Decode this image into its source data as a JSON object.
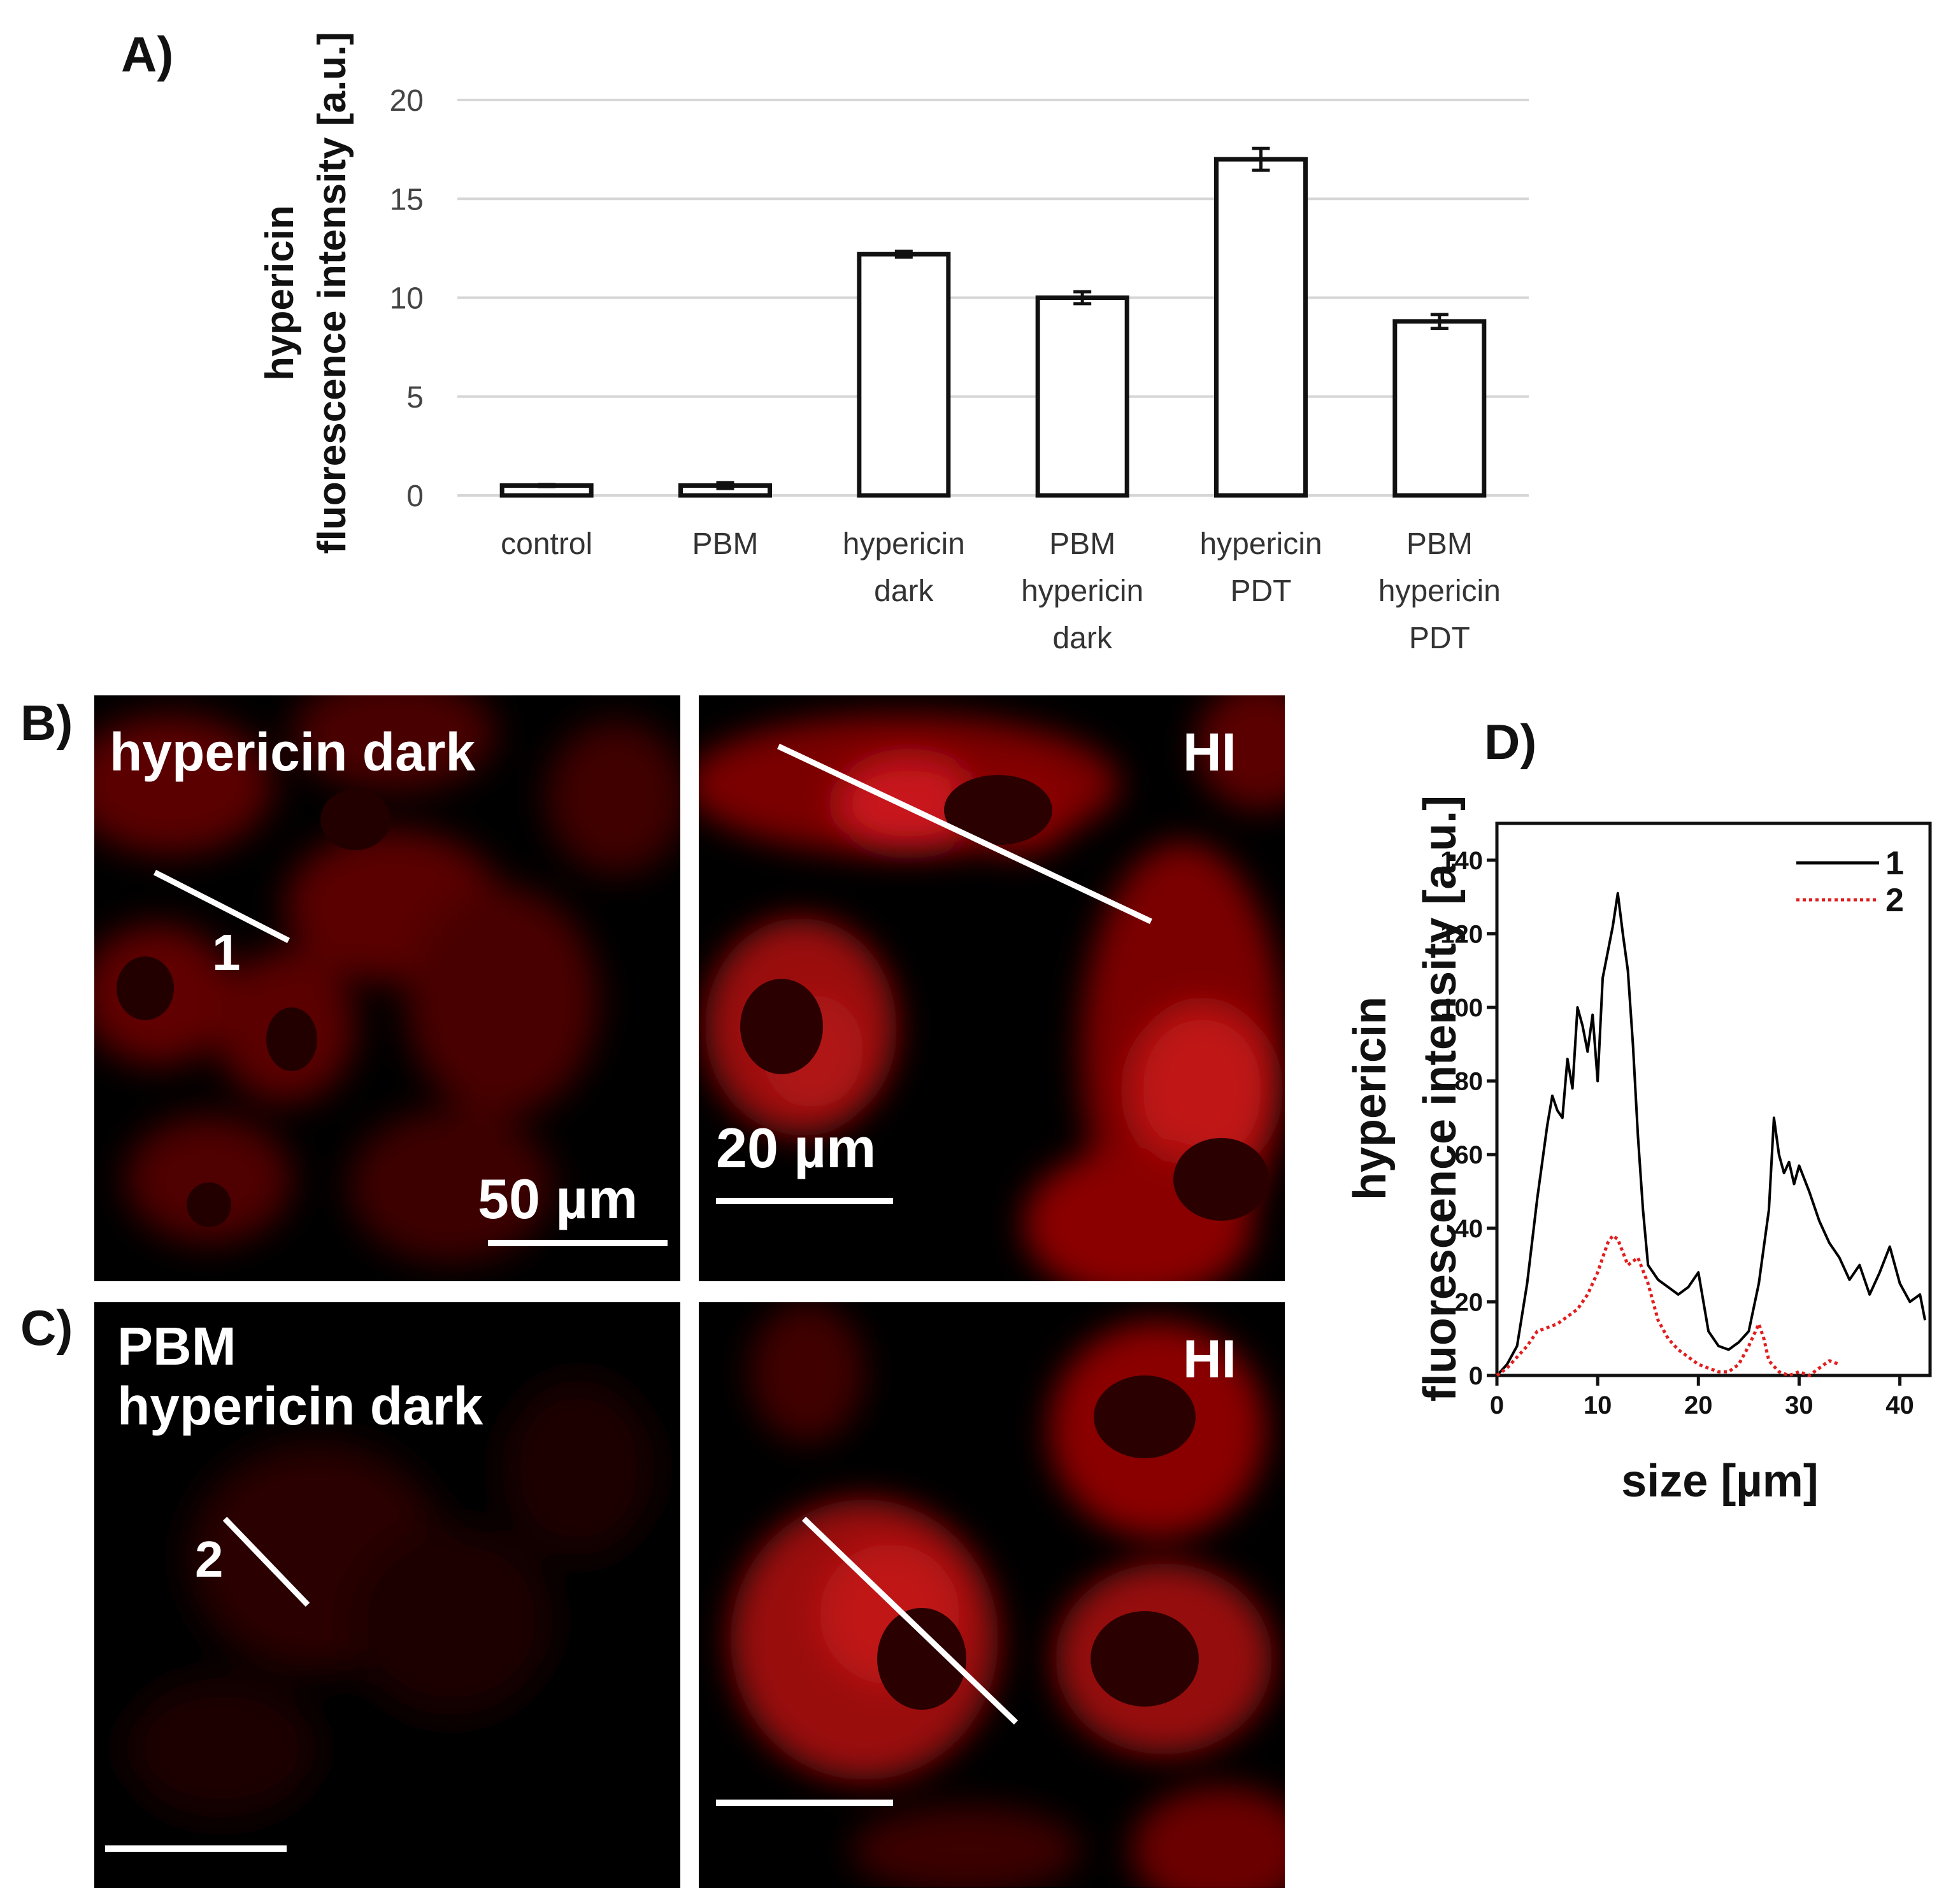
{
  "panels": {
    "a_label": "A)",
    "b_label": "B)",
    "c_label": "C)",
    "d_label": "D)"
  },
  "chart_data": [
    {
      "type": "bar",
      "panel": "A",
      "ylabel_lines": [
        "hypericin",
        "fluorescence intensity [a.u.]"
      ],
      "ylim": [
        0,
        20
      ],
      "yticks": [
        0,
        5,
        10,
        15,
        20
      ],
      "grid": true,
      "categories": [
        [
          "control"
        ],
        [
          "PBM"
        ],
        [
          "hypericin",
          "dark"
        ],
        [
          "PBM",
          "hypericin",
          "dark"
        ],
        [
          "hypericin",
          "PDT"
        ],
        [
          "PBM",
          "hypericin",
          "PDT"
        ]
      ],
      "values": [
        0.5,
        0.5,
        12.2,
        10.0,
        17.0,
        8.8
      ],
      "errors": [
        0.05,
        0.15,
        0.15,
        0.3,
        0.55,
        0.35
      ]
    },
    {
      "type": "line",
      "panel": "D",
      "ylabel_lines": [
        "hypericin",
        "fluorescence intensity [a.u.]"
      ],
      "xlabel": "size [µm]",
      "xlim": [
        0,
        43
      ],
      "ylim": [
        0,
        150
      ],
      "xticks": [
        0,
        10,
        20,
        30,
        40
      ],
      "yticks": [
        0,
        20,
        40,
        60,
        80,
        100,
        120,
        140
      ],
      "legend_position": "top-right",
      "series": [
        {
          "name": "1",
          "color": "#000000",
          "style": "solid",
          "x": [
            0,
            1,
            2,
            3,
            4,
            5,
            5.5,
            6,
            6.5,
            7,
            7.5,
            8,
            8.5,
            9,
            9.5,
            10,
            10.5,
            11,
            11.5,
            12,
            12.5,
            13,
            13.5,
            14,
            14.5,
            15,
            16,
            17,
            18,
            19,
            20,
            20.5,
            21,
            22,
            23,
            24,
            25,
            26,
            27,
            27.5,
            28,
            28.5,
            29,
            29.5,
            30,
            31,
            32,
            33,
            34,
            35,
            36,
            37,
            38,
            39,
            40,
            41,
            42,
            42.5
          ],
          "y": [
            0,
            3,
            8,
            25,
            48,
            68,
            76,
            72,
            70,
            86,
            78,
            100,
            95,
            88,
            98,
            80,
            108,
            115,
            122,
            131,
            120,
            110,
            90,
            65,
            45,
            30,
            26,
            24,
            22,
            24,
            28,
            20,
            12,
            8,
            7,
            9,
            12,
            25,
            45,
            70,
            60,
            55,
            58,
            52,
            57,
            50,
            42,
            36,
            32,
            26,
            30,
            22,
            28,
            35,
            25,
            20,
            22,
            15
          ]
        },
        {
          "name": "2",
          "color": "#e21e1e",
          "style": "dotted",
          "x": [
            0,
            1,
            2,
            3,
            4,
            5,
            6,
            7,
            8,
            9,
            10,
            11,
            11.5,
            12,
            13,
            14,
            15,
            16,
            17,
            18,
            19,
            20,
            21,
            22,
            23,
            24,
            25,
            26,
            26.5,
            27,
            28,
            29,
            30,
            31,
            32,
            33,
            34
          ],
          "y": [
            0,
            2,
            5,
            8,
            12,
            13,
            14,
            16,
            18,
            22,
            28,
            36,
            38,
            37,
            30,
            32,
            25,
            15,
            10,
            7,
            5,
            3,
            2,
            1,
            1,
            3,
            8,
            14,
            10,
            4,
            1,
            0,
            1,
            0,
            2,
            4,
            3
          ]
        }
      ]
    }
  ],
  "micrographs": {
    "b_left": {
      "label": "hypericin dark",
      "scalebar": "50 µm",
      "line_number": "1"
    },
    "b_right": {
      "label": "HI",
      "scalebar": "20 µm"
    },
    "c_left": {
      "label": "PBM\nhypericin dark",
      "line_number": "2"
    },
    "c_right": {
      "label": "HI"
    }
  }
}
